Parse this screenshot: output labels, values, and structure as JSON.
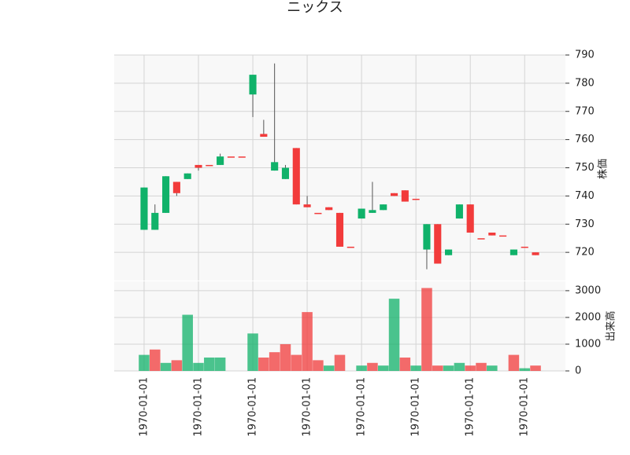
{
  "chart_data": {
    "type": "candlestick",
    "title": "ニックス",
    "categories": [
      "1970-01-01",
      null,
      null,
      null,
      null,
      "1970-01-01",
      null,
      null,
      null,
      null,
      "1970-01-01",
      null,
      null,
      null,
      null,
      "1970-01-01",
      null,
      null,
      null,
      null,
      "1970-01-01",
      null,
      null,
      null,
      null,
      "1970-01-01",
      null,
      null,
      null,
      null,
      "1970-01-01",
      null,
      null,
      null,
      null,
      "1970-01-01",
      null
    ],
    "open": [
      728,
      728,
      734,
      745,
      746,
      751,
      751,
      751,
      754,
      754,
      776,
      762,
      749,
      746,
      757,
      737,
      734,
      736,
      734,
      722,
      732,
      734,
      735,
      741,
      742,
      739,
      721,
      730,
      719,
      732,
      737,
      725,
      727,
      726,
      719,
      722,
      720
    ],
    "high": [
      743,
      737,
      747,
      745,
      748,
      751,
      751,
      755,
      754,
      754,
      783,
      767,
      787,
      751,
      757,
      740,
      734,
      736,
      734,
      722,
      735.5,
      745,
      737,
      741,
      742,
      739,
      730,
      730,
      721,
      737,
      737,
      725,
      727,
      726,
      721,
      722,
      720
    ],
    "low": [
      728,
      728,
      734,
      740,
      746,
      749,
      751,
      751,
      754,
      754,
      768,
      761,
      749,
      746,
      737,
      736,
      734,
      735,
      722,
      722,
      732,
      734,
      735,
      740,
      738,
      739,
      714,
      716,
      719,
      732,
      727,
      725,
      726,
      726,
      719,
      722,
      719
    ],
    "close": [
      743,
      734,
      747,
      741,
      748,
      750,
      751,
      754,
      754,
      754,
      783,
      761,
      752,
      750,
      737,
      736,
      734,
      735,
      722,
      722,
      735.5,
      735,
      737,
      740,
      738,
      739,
      730,
      716,
      721,
      737,
      727,
      725,
      726,
      726,
      721,
      722,
      719
    ],
    "up_color": "#10b26a",
    "down_color": "#f23b3b",
    "ylabel": "株価",
    "ylim": [
      710,
      790
    ],
    "yticks": [
      720,
      730,
      740,
      750,
      760,
      770,
      780,
      790
    ],
    "grid": true,
    "volume": {
      "label": "出来高",
      "values": [
        600,
        800,
        300,
        400,
        2100,
        300,
        500,
        500,
        0,
        0,
        1400,
        500,
        700,
        1000,
        600,
        2200,
        400,
        200,
        600,
        0,
        200,
        300,
        200,
        2700,
        500,
        200,
        3100,
        200,
        200,
        300,
        200,
        300,
        200,
        0,
        600,
        100,
        200
      ],
      "ylim": [
        0,
        3350
      ],
      "yticks": [
        0,
        1000,
        2000,
        3000
      ]
    }
  }
}
